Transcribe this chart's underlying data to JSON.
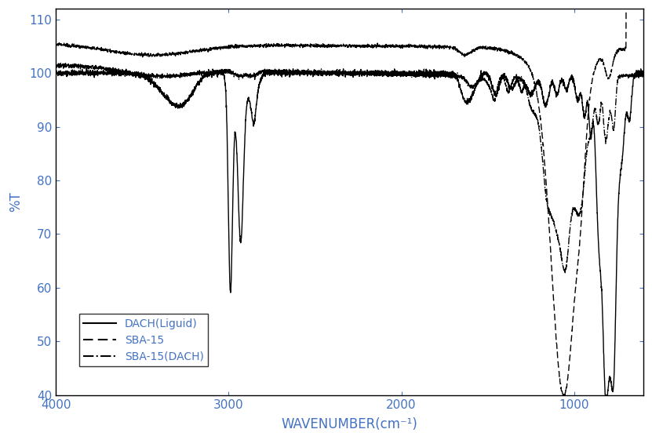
{
  "title": "",
  "xlabel": "WAVENUMBER(cm⁻¹)",
  "ylabel": "%T",
  "xlim": [
    4000,
    600
  ],
  "ylim": [
    40,
    112
  ],
  "yticks": [
    40,
    50,
    60,
    70,
    80,
    90,
    100,
    110
  ],
  "xticks": [
    4000,
    3000,
    2000,
    1000
  ],
  "line_color": "#000000",
  "legend_labels": [
    "DACH(Liguid)",
    "SBA-15",
    "SBA-15(DACH)"
  ],
  "legend_linestyles": [
    "solid",
    "dashed",
    "dashdot"
  ],
  "xlabel_color": "#4472c4",
  "ylabel_color": "#4472c4",
  "tick_color": "#4472c4",
  "legend_text_color": "#4472c4",
  "figsize": [
    8.31,
    5.61
  ],
  "dpi": 100
}
